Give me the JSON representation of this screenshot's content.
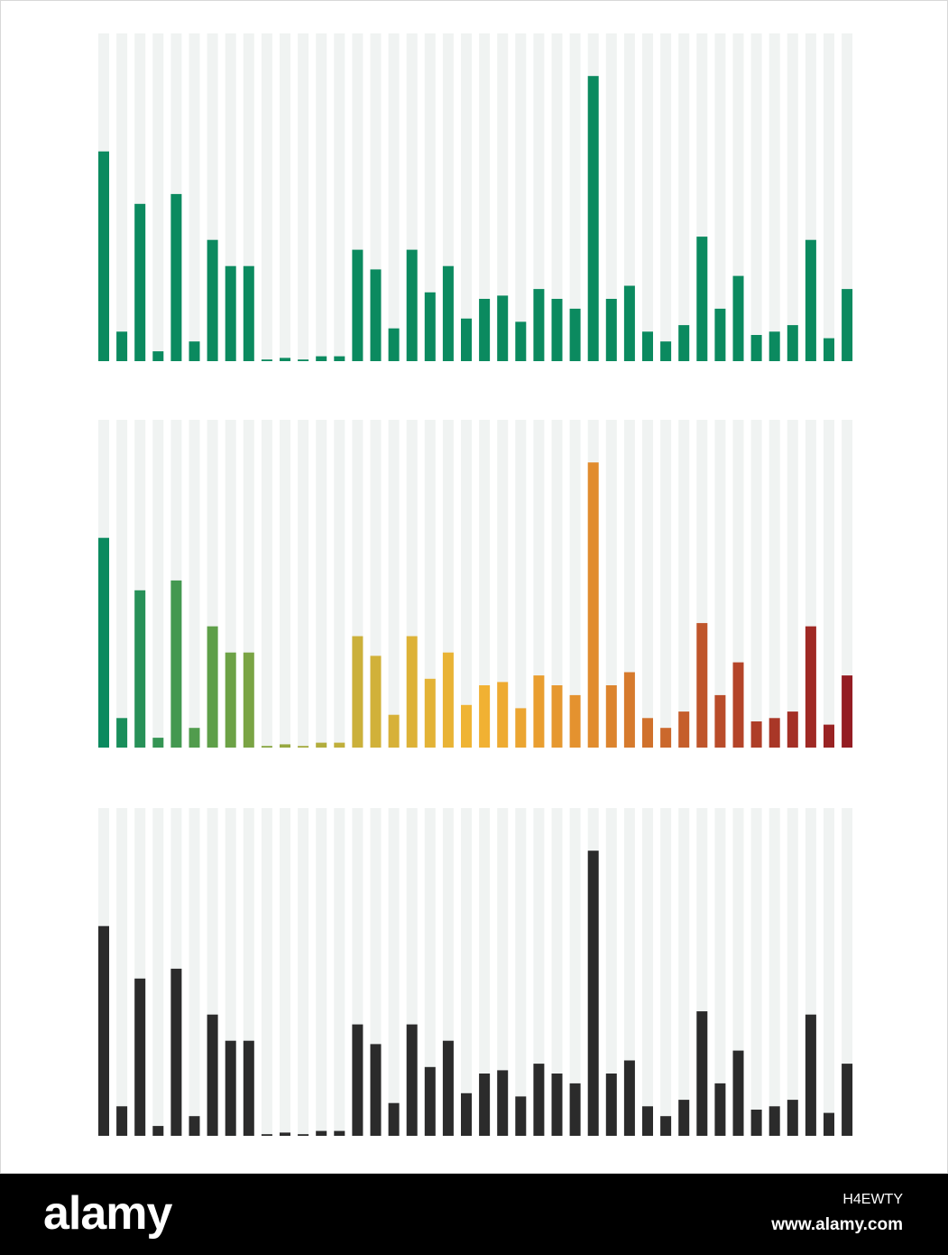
{
  "chart_data": [
    {
      "type": "bar",
      "color_scheme": "solid-green",
      "bar_color": "#0b8a5f",
      "track_color": "#f0f3f2",
      "ylim": [
        0,
        100
      ],
      "grid": false,
      "values": [
        64,
        9,
        48,
        3,
        51,
        6,
        37,
        29,
        29,
        0.5,
        1,
        0.5,
        1.5,
        1.5,
        34,
        28,
        10,
        34,
        21,
        29,
        13,
        19,
        20,
        12,
        22,
        19,
        16,
        87,
        19,
        23,
        9,
        6,
        11,
        38,
        16,
        26,
        8,
        9,
        11,
        37,
        7,
        22
      ]
    },
    {
      "type": "bar",
      "color_scheme": "gradient-green-yellow-orange-red",
      "track_color": "#f0f3f2",
      "ylim": [
        0,
        100
      ],
      "grid": false,
      "values": [
        64,
        9,
        48,
        3,
        51,
        6,
        37,
        29,
        29,
        0.5,
        1,
        0.5,
        1.5,
        1.5,
        34,
        28,
        10,
        34,
        21,
        29,
        13,
        19,
        20,
        12,
        22,
        19,
        16,
        87,
        19,
        23,
        9,
        6,
        11,
        38,
        16,
        26,
        8,
        9,
        11,
        37,
        7,
        22
      ],
      "gradient_stops": [
        "#0b8a5f",
        "#6aa246",
        "#c9b03a",
        "#f2b433",
        "#e08a2e",
        "#b84a2a",
        "#941c22"
      ]
    },
    {
      "type": "bar",
      "color_scheme": "solid-black",
      "bar_color": "#2b2b2b",
      "track_color": "#f0f3f2",
      "ylim": [
        0,
        100
      ],
      "grid": false,
      "values": [
        64,
        9,
        48,
        3,
        51,
        6,
        37,
        29,
        29,
        0.5,
        1,
        0.5,
        1.5,
        1.5,
        34,
        28,
        10,
        34,
        21,
        29,
        13,
        19,
        20,
        12,
        22,
        19,
        16,
        87,
        19,
        23,
        9,
        6,
        11,
        38,
        16,
        26,
        8,
        9,
        11,
        37,
        7,
        22
      ]
    }
  ],
  "footer": {
    "brand": "alamy",
    "image_id": "H4EWTY",
    "url": "www.alamy.com"
  }
}
